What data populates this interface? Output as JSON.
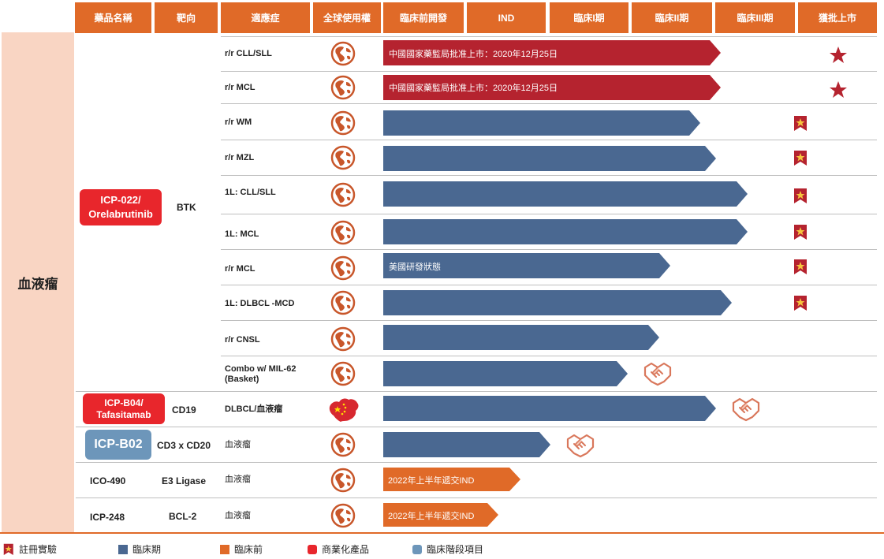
{
  "colors": {
    "header": "#e06a28",
    "side": "#f9d5c3",
    "clinical": "#4a6891",
    "preclinical": "#e06a28",
    "commercial": "#b5232f",
    "drug_red": "#e8262c",
    "drug_blue": "#6d96ba"
  },
  "headers": [
    "藥品名稱",
    "靶向",
    "適應症",
    "全球使用權",
    "臨床前開發",
    "IND",
    "臨床I期",
    "臨床II期",
    "臨床III期",
    "獲批上市"
  ],
  "category": "血液瘤",
  "drugs": [
    {
      "name": "ICP-022/\nOrelabrutinib",
      "target": "BTK",
      "style": "red"
    },
    {
      "name": "ICP-B04/\nTafasitamab",
      "target": "CD19",
      "style": "red"
    },
    {
      "name": "ICP-B02",
      "target": "CD3 x CD20",
      "style": "blue"
    },
    {
      "name": "ICO-490",
      "target": "E3 Ligase",
      "style": "plain"
    },
    {
      "name": "ICP-248",
      "target": "BCL-2",
      "style": "plain"
    }
  ],
  "rows": [
    {
      "indication": "r/r CLL/SLL",
      "rights": "globe",
      "stage": "approved",
      "bar_color": "commercial",
      "bar_text": "中國國家藥監局批准上市：2020年12月25日",
      "end_marker": "star"
    },
    {
      "indication": "r/r MCL",
      "rights": "globe",
      "stage": "approved",
      "bar_color": "commercial",
      "bar_text": "中國國家藥監局批准上市：2020年12月25日",
      "end_marker": "star"
    },
    {
      "indication": "r/r WM",
      "rights": "globe",
      "stage": "phase II",
      "bar_color": "clinical",
      "bar_text": "",
      "end_marker": "registrational-badge"
    },
    {
      "indication": "r/r MZL",
      "rights": "globe",
      "stage": "phase II",
      "bar_color": "clinical",
      "bar_text": "",
      "end_marker": "registrational-badge"
    },
    {
      "indication": "1L: CLL/SLL",
      "rights": "globe",
      "stage": "phase III",
      "bar_color": "clinical",
      "bar_text": "",
      "end_marker": "registrational-badge"
    },
    {
      "indication": "1L: MCL",
      "rights": "globe",
      "stage": "phase III",
      "bar_color": "clinical",
      "bar_text": "",
      "end_marker": "registrational-badge"
    },
    {
      "indication": "r/r MCL",
      "rights": "globe",
      "stage": "phase II",
      "bar_color": "clinical",
      "bar_text": "美國研發狀態",
      "end_marker": "registrational-badge"
    },
    {
      "indication": "1L: DLBCL -MCD",
      "rights": "globe",
      "stage": "phase III",
      "bar_color": "clinical",
      "bar_text": "",
      "end_marker": "registrational-badge"
    },
    {
      "indication": "r/r CNSL",
      "rights": "globe",
      "stage": "phase II",
      "bar_color": "clinical",
      "bar_text": "",
      "end_marker": ""
    },
    {
      "indication": "Combo w/ MIL-62\n(Basket)",
      "rights": "globe",
      "stage": "phase I",
      "bar_color": "clinical",
      "bar_text": "",
      "end_marker": "partnership"
    },
    {
      "indication": "DLBCL/血液瘤",
      "rights": "china",
      "stage": "phase III",
      "bar_color": "clinical",
      "bar_text": "",
      "end_marker": "partnership"
    },
    {
      "indication": "血液瘤",
      "rights": "globe",
      "stage": "phase I",
      "bar_color": "clinical",
      "bar_text": "",
      "end_marker": "partnership"
    },
    {
      "indication": "血液瘤",
      "rights": "globe",
      "stage": "IND",
      "bar_color": "preclinical",
      "bar_text": "2022年上半年遞交IND",
      "end_marker": ""
    },
    {
      "indication": "血液瘤",
      "rights": "globe",
      "stage": "preclinical",
      "bar_color": "preclinical",
      "bar_text": "2022年上半年遞交IND",
      "end_marker": ""
    }
  ],
  "legend": [
    {
      "label": "註冊實驗",
      "icon": "registrational-badge"
    },
    {
      "label": "臨床期",
      "color": "#4a6891"
    },
    {
      "label": "臨床前",
      "color": "#e06a28"
    },
    {
      "label": "商業化產品",
      "color": "#e8262c"
    },
    {
      "label": "臨床階段項目",
      "color": "#6d96ba"
    }
  ]
}
